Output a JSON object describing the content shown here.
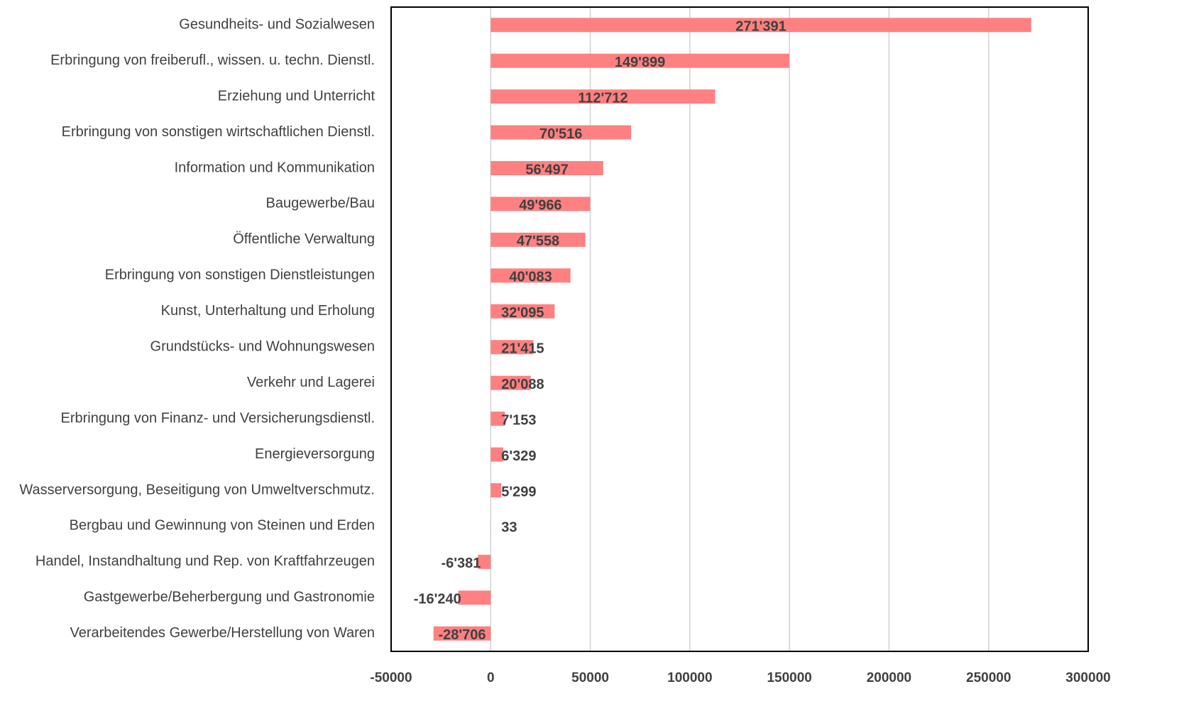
{
  "chart_data": {
    "type": "barh",
    "categories": [
      "Gesundheits- und Sozialwesen",
      "Erbringung von freiberufl., wissen. u. techn. Dienstl.",
      "Erziehung und Unterricht",
      "Erbringung von sonstigen wirtschaftlichen Dienstl.",
      "Information und Kommunikation",
      "Baugewerbe/Bau",
      "Öffentliche Verwaltung",
      "Erbringung von sonstigen Dienstleistungen",
      "Kunst, Unterhaltung und Erholung",
      "Grundstücks- und Wohnungswesen",
      "Verkehr und Lagerei",
      "Erbringung von Finanz- und Versicherungsdienstl.",
      "Energieversorgung",
      "Wasserversorgung, Beseitigung von Umweltverschmutz.",
      "Bergbau und Gewinnung von Steinen und Erden",
      "Handel, Instandhaltung und Rep. von Kraftfahrzeugen",
      "Gastgewerbe/Beherbergung und Gastronomie",
      "Verarbeitendes Gewerbe/Herstellung von Waren"
    ],
    "values": [
      271391,
      149899,
      112712,
      70516,
      56497,
      49966,
      47558,
      40083,
      32095,
      21415,
      20088,
      7153,
      6329,
      5299,
      33,
      -6381,
      -16240,
      -28706
    ],
    "value_labels": [
      "271'391",
      "149'899",
      "112'712",
      "70'516",
      "56'497",
      "49'966",
      "47'558",
      "40'083",
      "32'095",
      "21'415",
      "20'088",
      "7'153",
      "6'329",
      "5'299",
      "33",
      "-6'381",
      "-16'240",
      "-28'706"
    ],
    "color": "#ff8080",
    "xlim": [
      -50000,
      300000
    ],
    "xticks": [
      -50000,
      0,
      50000,
      100000,
      150000,
      200000,
      250000,
      300000
    ],
    "grid": true
  }
}
